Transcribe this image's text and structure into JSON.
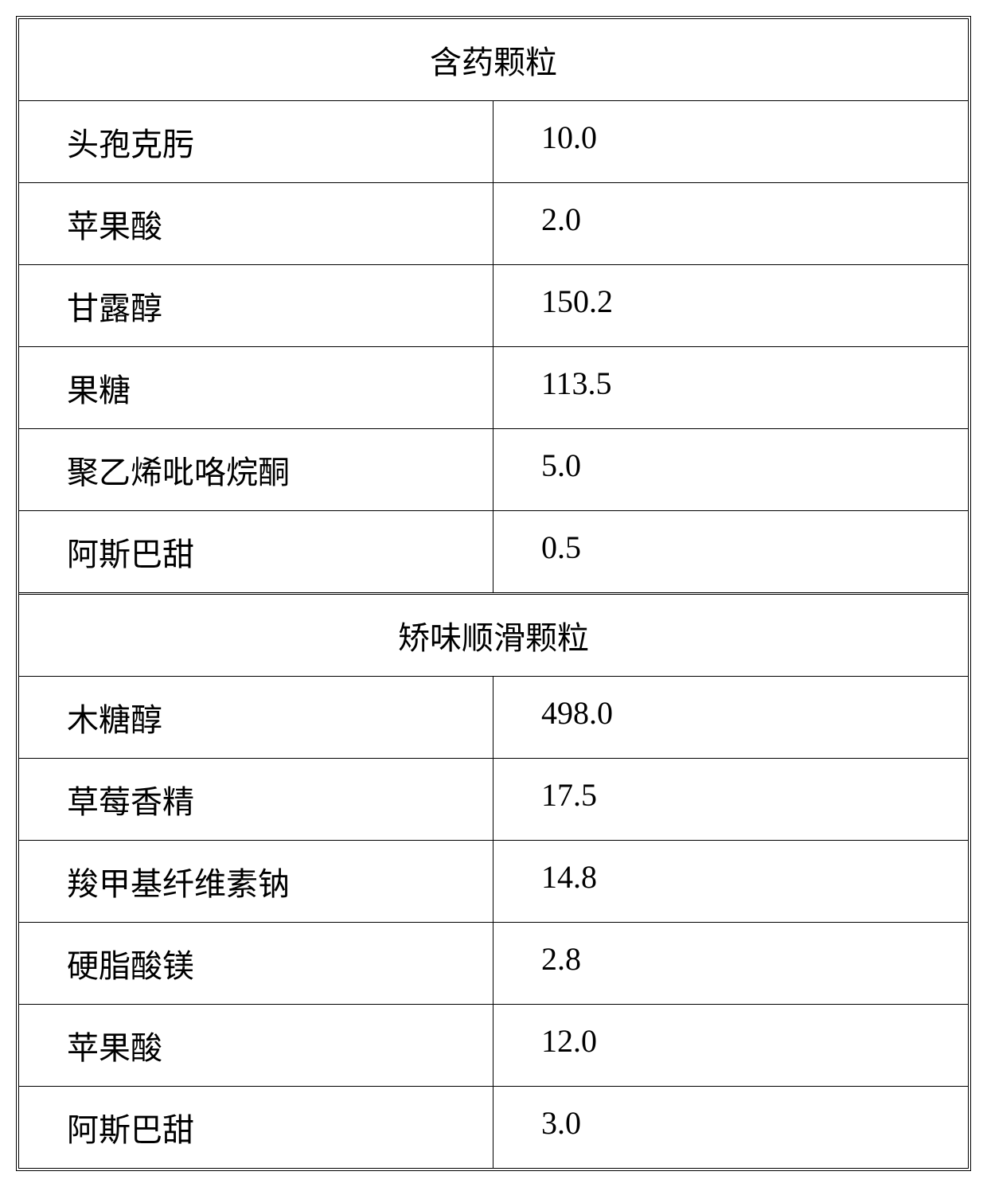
{
  "table": {
    "background_color": "#ffffff",
    "border_color": "#000000",
    "font_family": "SimSun",
    "font_size_pt": 30,
    "text_color": "#000000",
    "sections": [
      {
        "header": "含药颗粒",
        "rows": [
          {
            "label": "头孢克肟",
            "value": "10.0"
          },
          {
            "label": "苹果酸",
            "value": "2.0"
          },
          {
            "label": "甘露醇",
            "value": "150.2"
          },
          {
            "label": "果糖",
            "value": "113.5"
          },
          {
            "label": "聚乙烯吡咯烷酮",
            "value": "5.0"
          },
          {
            "label": "阿斯巴甜",
            "value": "0.5"
          }
        ]
      },
      {
        "header": "矫味顺滑颗粒",
        "rows": [
          {
            "label": "木糖醇",
            "value": "498.0"
          },
          {
            "label": "草莓香精",
            "value": "17.5"
          },
          {
            "label": "羧甲基纤维素钠",
            "value": "14.8"
          },
          {
            "label": "硬脂酸镁",
            "value": "2.8"
          },
          {
            "label": "苹果酸",
            "value": "12.0"
          },
          {
            "label": "阿斯巴甜",
            "value": "3.0"
          }
        ]
      }
    ]
  }
}
